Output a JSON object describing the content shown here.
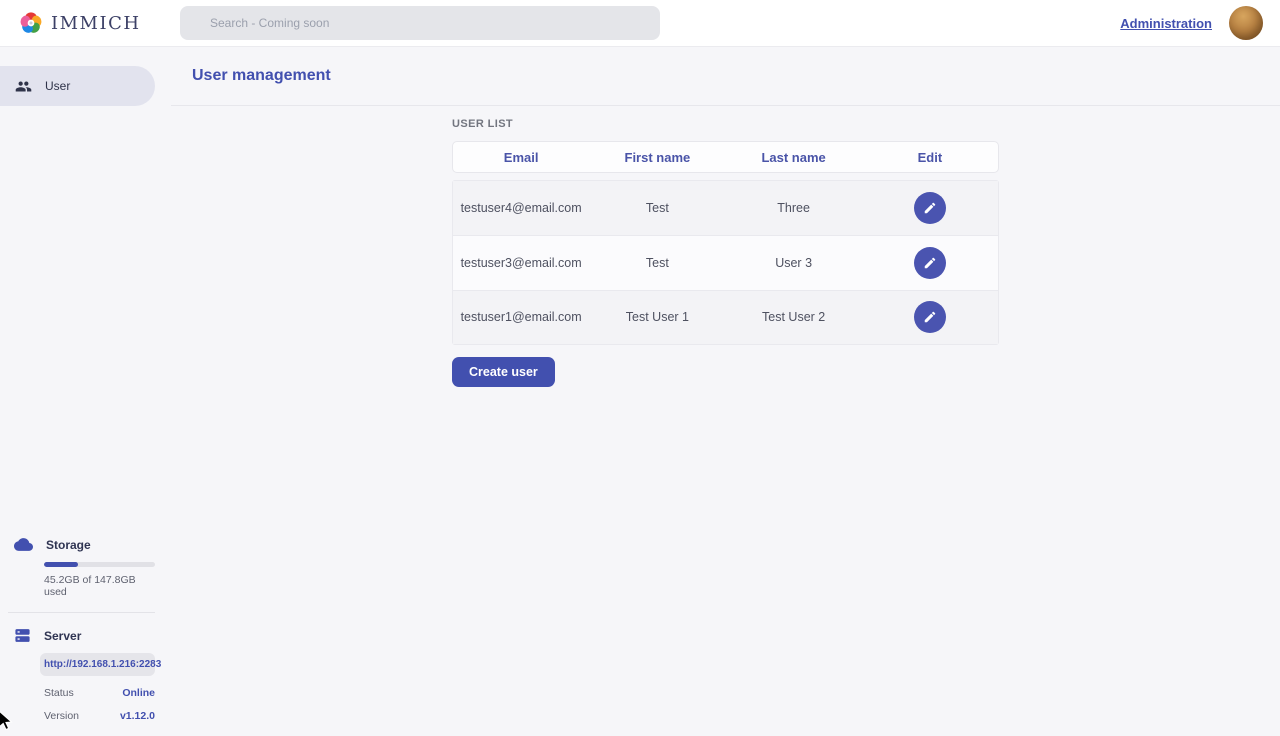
{
  "header": {
    "app_name": "IMMICH",
    "search_placeholder": "Search - Coming soon",
    "admin_link_label": "Administration"
  },
  "sidebar": {
    "nav_items": [
      {
        "label": "User",
        "active": true
      }
    ],
    "storage": {
      "title": "Storage",
      "usage_text": "45.2GB of 147.8GB used",
      "used_percent": 30.6
    },
    "server_info": {
      "title": "Server",
      "url": "http://192.168.1.216:2283",
      "status_label": "Status",
      "status_value": "Online",
      "version_label": "Version",
      "version_value": "v1.12.0"
    }
  },
  "main": {
    "page_title": "User management",
    "section_label": "USER LIST",
    "table": {
      "columns": [
        "Email",
        "First name",
        "Last name",
        "Edit"
      ],
      "rows": [
        {
          "email": "testuser4@email.com",
          "first_name": "Test",
          "last_name": "Three"
        },
        {
          "email": "testuser3@email.com",
          "first_name": "Test",
          "last_name": "User 3"
        },
        {
          "email": "testuser1@email.com",
          "first_name": "Test User 1",
          "last_name": "Test User 2"
        }
      ]
    },
    "create_user_label": "Create user"
  },
  "colors": {
    "primary": "#4250af",
    "dark_text": "#2f3349",
    "muted_text": "#6b6f7d",
    "page_bg": "#f6f6f9",
    "row_stripe": "#f3f3f6",
    "logo_petals": [
      "#e53935",
      "#f9a825",
      "#43a047",
      "#1e88e5",
      "#ec5f9a"
    ]
  }
}
